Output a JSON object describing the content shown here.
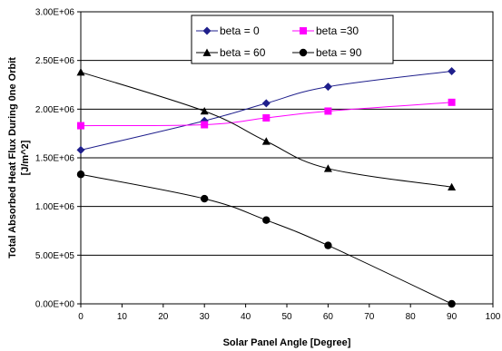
{
  "chart_data": {
    "type": "line",
    "xlabel": "Solar Panel Angle [Degree]",
    "ylabel": [
      "Total Absorbed Heat Flux During 0ne Orbit",
      "[J/m^2]"
    ],
    "xlim": [
      0,
      100
    ],
    "ylim": [
      0,
      3000000
    ],
    "xticks": [
      0,
      10,
      20,
      30,
      40,
      50,
      60,
      70,
      80,
      90,
      100
    ],
    "xtick_labels": [
      "0",
      "10",
      "20",
      "30",
      "40",
      "50",
      "60",
      "70",
      "80",
      "90",
      "100"
    ],
    "yticks": [
      0,
      500000,
      1000000,
      1500000,
      2000000,
      2500000,
      3000000
    ],
    "ytick_labels": [
      "0.00E+00",
      "5.00E+05",
      "1.00E+06",
      "1.50E+06",
      "2.00E+06",
      "2.50E+06",
      "3.00E+06"
    ],
    "grid": "horizontal",
    "legend_position": "top-right",
    "x": [
      0,
      30,
      45,
      60,
      90
    ],
    "series": [
      {
        "name": "beta = 0",
        "values": [
          1580000,
          1880000,
          2060000,
          2230000,
          2390000
        ],
        "color": "#1f1f8c",
        "marker": "diamond",
        "smooth": true
      },
      {
        "name": "beta =30",
        "values": [
          1830000,
          1840000,
          1910000,
          1980000,
          2070000
        ],
        "color": "#ff00ff",
        "marker": "square",
        "smooth": true
      },
      {
        "name": "beta = 60",
        "values": [
          2380000,
          1980000,
          1670000,
          1390000,
          1200000
        ],
        "color": "#000000",
        "marker": "triangle",
        "smooth": true
      },
      {
        "name": "beta = 90",
        "values": [
          1330000,
          1080000,
          860000,
          600000,
          0
        ],
        "color": "#000000",
        "marker": "circle",
        "smooth": true
      }
    ]
  }
}
